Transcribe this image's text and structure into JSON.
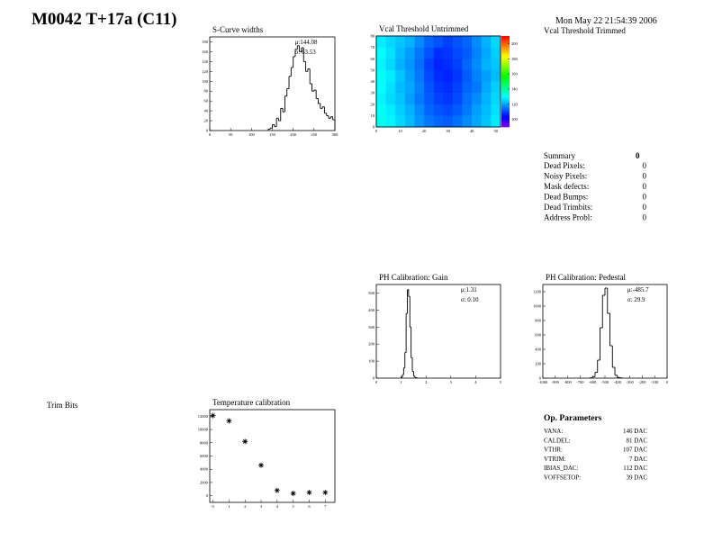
{
  "header": {
    "title": "M0042 T+17a (C11)",
    "date": "Mon May 22 21:54:39 2006"
  },
  "empty_panels": [
    "Vcal Threshold Trimmed",
    "Trim Bits"
  ],
  "chart_data": [
    {
      "type": "histogram",
      "title": "S-Curve widths",
      "color": "#000000",
      "bins": [
        140,
        145,
        150,
        155,
        160,
        165,
        170,
        175,
        180,
        185,
        190,
        195,
        200,
        205,
        210,
        215,
        220,
        225,
        230,
        235,
        240,
        245,
        250,
        255,
        260,
        265,
        270,
        275,
        280,
        285,
        290,
        295,
        300
      ],
      "values": [
        3,
        5,
        12,
        8,
        25,
        20,
        45,
        38,
        70,
        85,
        110,
        128,
        150,
        165,
        172,
        160,
        168,
        140,
        120,
        125,
        95,
        80,
        82,
        65,
        55,
        45,
        48,
        35,
        30,
        25,
        28,
        22
      ],
      "xlim": [
        0,
        300
      ],
      "xticks": [
        0,
        50,
        100,
        150,
        200,
        250,
        300
      ],
      "ylim": [
        0,
        190
      ],
      "yticks": [
        0,
        20,
        40,
        60,
        80,
        100,
        120,
        140,
        160,
        180
      ],
      "stats": [
        "μ:144.08",
        "σ: 63.53"
      ]
    },
    {
      "type": "heatmap",
      "title": "Vcal Threshold Untrimmed",
      "palette": "rainbow",
      "xlim": [
        0,
        52
      ],
      "xticks": [
        0,
        10,
        20,
        30,
        40,
        50
      ],
      "ylim": [
        0,
        80
      ],
      "yticks": [
        0,
        10,
        20,
        30,
        40,
        50,
        60,
        70,
        80
      ],
      "clim": [
        90,
        210
      ],
      "cticks": [
        100,
        120,
        140,
        160,
        180,
        200
      ],
      "z": [
        [
          128,
          126,
          124,
          122,
          118,
          114,
          112,
          110,
          112,
          114,
          118,
          122,
          126
        ],
        [
          130,
          127,
          123,
          120,
          116,
          112,
          108,
          109,
          111,
          113,
          117,
          121,
          125
        ],
        [
          129,
          126,
          122,
          119,
          115,
          110,
          107,
          108,
          110,
          114,
          118,
          122,
          124
        ],
        [
          131,
          128,
          124,
          120,
          116,
          111,
          108,
          107,
          109,
          113,
          117,
          120,
          123
        ],
        [
          130,
          127,
          123,
          121,
          117,
          112,
          109,
          108,
          110,
          114,
          116,
          121,
          125
        ],
        [
          129,
          126,
          124,
          120,
          116,
          113,
          110,
          109,
          111,
          115,
          118,
          122,
          126
        ],
        [
          131,
          128,
          125,
          122,
          118,
          114,
          112,
          111,
          113,
          116,
          120,
          123,
          127
        ],
        [
          132,
          129,
          126,
          123,
          119,
          116,
          114,
          113,
          115,
          118,
          121,
          124,
          128
        ]
      ]
    },
    {
      "type": "histogram",
      "title": "PH Calibration: Gain",
      "color": "#000000",
      "bins": [
        1.0,
        1.05,
        1.1,
        1.15,
        1.2,
        1.25,
        1.3,
        1.35,
        1.4,
        1.45,
        1.5,
        1.55,
        1.6,
        1.65
      ],
      "values": [
        5,
        20,
        60,
        150,
        380,
        520,
        480,
        300,
        120,
        40,
        12,
        4,
        2
      ],
      "xlim": [
        0,
        5
      ],
      "xticks": [
        0,
        1,
        2,
        3,
        4,
        5
      ],
      "ylim": [
        0,
        550
      ],
      "yticks": [
        0,
        100,
        200,
        300,
        400,
        500
      ],
      "stats": [
        "μ:1.31",
        "σ: 0.10"
      ]
    },
    {
      "type": "histogram",
      "title": "PH Calibration: Pedestal",
      "color": "#000000",
      "bins": [
        -620,
        -600,
        -580,
        -560,
        -540,
        -520,
        -500,
        -480,
        -460,
        -440,
        -420,
        -400,
        -380,
        -360
      ],
      "values": [
        5,
        20,
        80,
        250,
        700,
        1150,
        1250,
        900,
        450,
        150,
        40,
        10,
        3
      ],
      "xlim": [
        -1000,
        0
      ],
      "xticks": [
        -1000,
        -900,
        -800,
        -700,
        -600,
        -500,
        -400,
        -300,
        -200,
        -100,
        0
      ],
      "ylim": [
        0,
        1300
      ],
      "yticks": [
        0,
        200,
        400,
        600,
        800,
        1000,
        1200
      ],
      "stats": [
        "μ:-485.7",
        "σ: 29.9"
      ]
    },
    {
      "type": "scatter",
      "title": "Temperature calibration",
      "color": "#000000",
      "x": [
        0,
        1,
        2,
        3,
        4,
        5,
        6,
        7
      ],
      "values": [
        12100,
        11300,
        8200,
        4600,
        800,
        350,
        500,
        500
      ],
      "xlim": [
        -0.2,
        7.6
      ],
      "xticks": [
        0,
        1,
        2,
        3,
        4,
        5,
        6,
        7
      ],
      "ylim": [
        -1000,
        13000
      ],
      "yticks": [
        0,
        2000,
        4000,
        6000,
        8000,
        10000,
        12000
      ]
    }
  ],
  "summary": {
    "title": "Summary",
    "total": 0,
    "rows": [
      {
        "label": "Dead Pixels:",
        "value": 0
      },
      {
        "label": "Noisy Pixels:",
        "value": 0
      },
      {
        "label": "Mask defects:",
        "value": 0
      },
      {
        "label": "Dead Bumps:",
        "value": 0
      },
      {
        "label": "Dead Trimbits:",
        "value": 0
      },
      {
        "label": "Address Probl:",
        "value": 0
      }
    ]
  },
  "op_parameters": {
    "title": "Op. Parameters",
    "rows": [
      {
        "name": "VANA:",
        "value": "146 DAC"
      },
      {
        "name": "CALDEL:",
        "value": "81 DAC"
      },
      {
        "name": "VTHR:",
        "value": "107 DAC"
      },
      {
        "name": "VTRIM:",
        "value": "7 DAC"
      },
      {
        "name": "IBIAS_DAC:",
        "value": "112 DAC"
      },
      {
        "name": "VOFFSETOP:",
        "value": "39 DAC"
      }
    ]
  }
}
